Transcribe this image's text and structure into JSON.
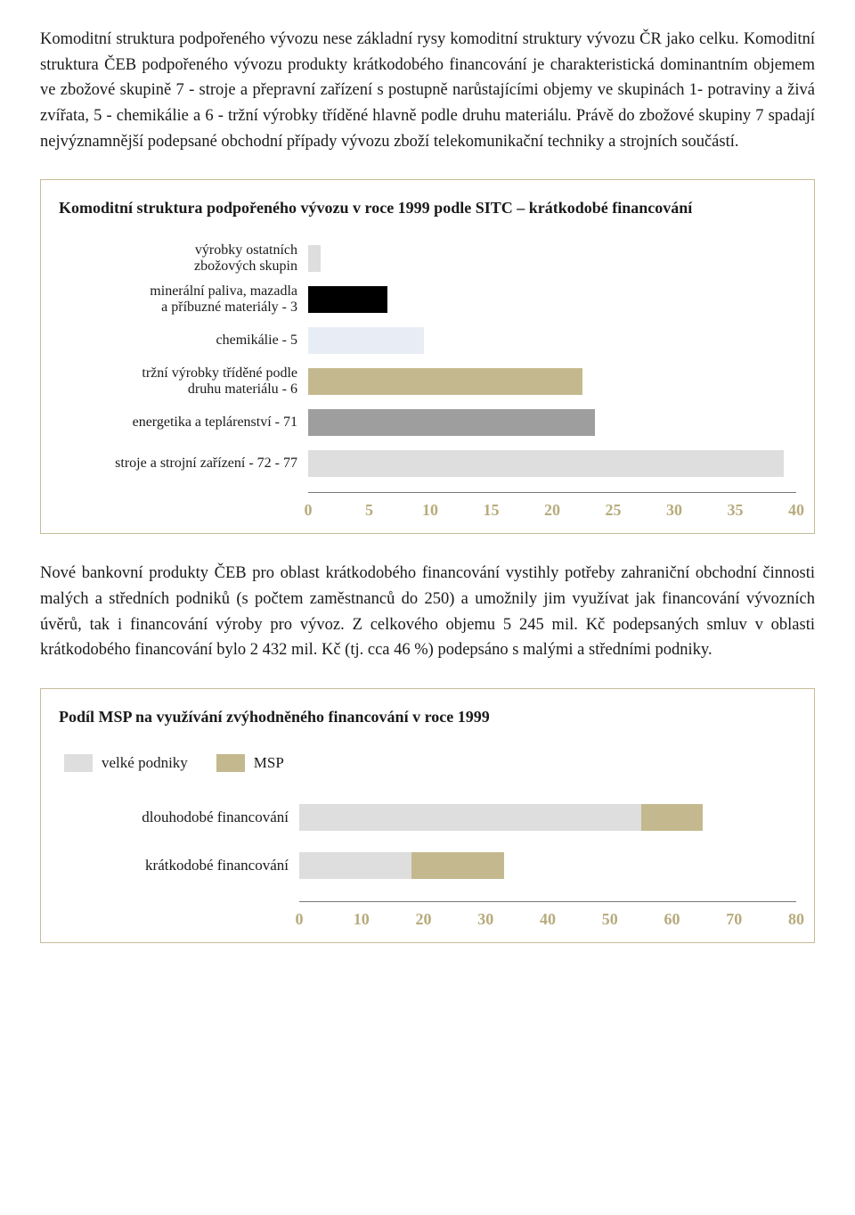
{
  "paragraph1": "Komoditní struktura podpořeného vývozu nese základní rysy komoditní struktury vývozu ČR jako celku. Komoditní struktura ČEB podpořeného vývozu produkty krátkodobého financování je charakteristická dominantním objemem ve zbožové skupině 7 - stroje a přepravní zařízení s postupně narůstajícími objemy ve skupinách 1- potraviny a živá zvířata, 5 - chemikálie a 6 - tržní výrobky tříděné hlavně podle druhu materiálu. Právě do zbožové skupiny 7 spadají nejvýznamnější podepsané obchodní případy vývozu zboží telekomunikační techniky a strojních součástí.",
  "paragraph2": "Nové bankovní produkty ČEB pro oblast krátkodobého financování vystihly potřeby zahraniční obchodní činnosti malých a středních podniků (s počtem zaměstnanců do 250) a umožnily jim využívat jak financování vývozních úvěrů, tak i financování výroby pro vývoz. Z celkového objemu 5 245 mil. Kč podepsaných smluv v oblasti krátkodobého financování bylo 2 432 mil. Kč (tj. cca 46 %) podepsáno s malými a středními podniky.",
  "chart1": {
    "title": "Komoditní struktura podpořeného vývozu v roce 1999 podle SITC – krátkodobé financování",
    "border_color": "#c6bc97",
    "label_width": 280,
    "xmax": 40,
    "ticks": [
      "0",
      "5",
      "10",
      "15",
      "20",
      "25",
      "30",
      "35",
      "40"
    ],
    "tick_color": "#b7ab7d",
    "rows": [
      {
        "label": "výrobky ostatních\nzbožových skupin",
        "value": 1.0,
        "color": "#dedede"
      },
      {
        "label": "minerální paliva, mazadla\na příbuzné materiály - 3",
        "value": 6.5,
        "color": "#000000"
      },
      {
        "label": "chemikálie - 5",
        "value": 9.5,
        "color": "#e8edf5"
      },
      {
        "label": "tržní výrobky tříděné podle\ndruhu materiálu - 6",
        "value": 22.5,
        "color": "#c4b98e"
      },
      {
        "label": "energetika a teplárenství - 71",
        "value": 23.5,
        "color": "#9e9e9e"
      },
      {
        "label": "stroje a strojní zařízení - 72 - 77",
        "value": 39.0,
        "color": "#dedede"
      }
    ]
  },
  "chart2": {
    "title": "Podíl MSP na využívání zvýhodněného financování v roce 1999",
    "border_color": "#c6bc97",
    "label_width": 270,
    "xmax": 80,
    "ticks": [
      "0",
      "10",
      "20",
      "30",
      "40",
      "50",
      "60",
      "70",
      "80"
    ],
    "tick_color": "#b7ab7d",
    "legend": [
      {
        "label": "velké podniky",
        "color": "#dedede"
      },
      {
        "label": "MSP",
        "color": "#c4b98e"
      }
    ],
    "rows": [
      {
        "label": "dlouhodobé financování",
        "segments": [
          {
            "value": 55,
            "color": "#dedede"
          },
          {
            "value": 10,
            "color": "#c4b98e"
          }
        ]
      },
      {
        "label": "krátkodobé financování",
        "segments": [
          {
            "value": 18,
            "color": "#dedede"
          },
          {
            "value": 15,
            "color": "#c4b98e"
          }
        ]
      }
    ]
  }
}
